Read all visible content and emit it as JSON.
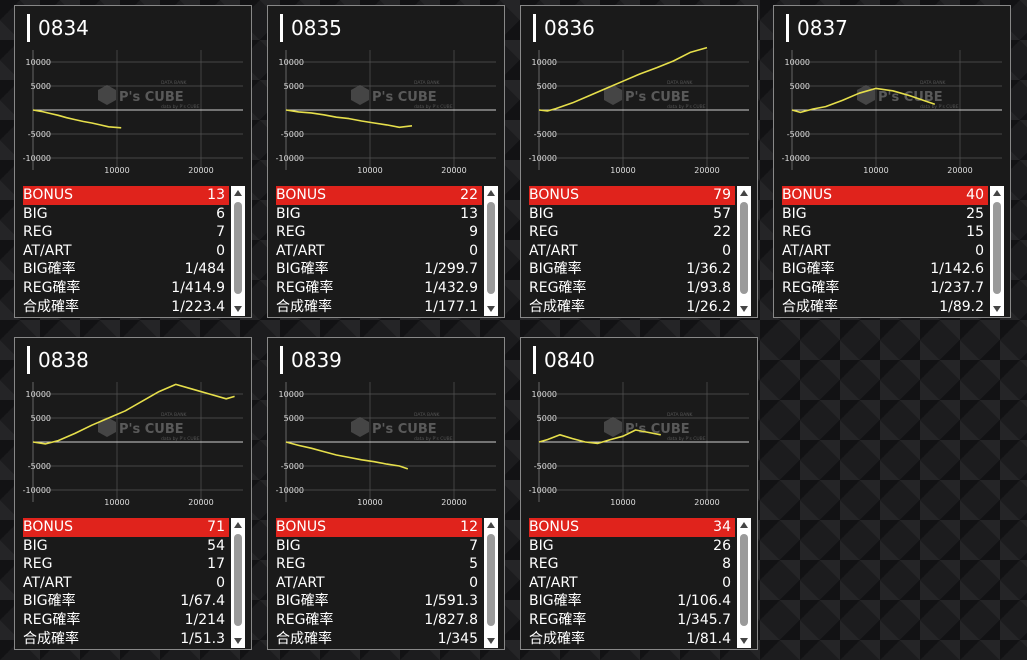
{
  "colors": {
    "highlight": "#e0231c",
    "line": "#e6df4b",
    "panel": "#1a1a1a"
  },
  "watermark": {
    "brand": "P's CUBE",
    "sub": "data by P's CUBE",
    "tag": "DATA BANK"
  },
  "machines": [
    {
      "id": "0834",
      "chart_data": {
        "type": "line",
        "xlim": [
          0,
          25000
        ],
        "ylim": [
          -12500,
          12500
        ],
        "yticks": [
          10000,
          5000,
          0,
          -5000,
          -10000
        ],
        "ytick_labels": [
          "10000",
          "5000",
          "",
          "-5000",
          "-10000"
        ],
        "xticks": [
          10000,
          20000
        ],
        "xtick_labels": [
          "10000",
          "20000"
        ],
        "series": [
          {
            "x": [
              0,
              1000,
              2000,
              3000,
              4000,
              5000,
              6000,
              7000,
              8000,
              9000,
              10500
            ],
            "y": [
              0,
              -300,
              -700,
              -1100,
              -1600,
              -2000,
              -2400,
              -2700,
              -3100,
              -3500,
              -3700
            ]
          }
        ]
      },
      "stats": [
        {
          "label": "BONUS",
          "value": "13",
          "hl": true
        },
        {
          "label": "BIG",
          "value": "6"
        },
        {
          "label": "REG",
          "value": "7"
        },
        {
          "label": "AT/ART",
          "value": "0"
        },
        {
          "label": "BIG確率",
          "value": "1/484"
        },
        {
          "label": "REG確率",
          "value": "1/414.9"
        },
        {
          "label": "合成確率",
          "value": "1/223.4"
        }
      ]
    },
    {
      "id": "0835",
      "chart_data": {
        "type": "line",
        "xlim": [
          0,
          25000
        ],
        "ylim": [
          -12500,
          12500
        ],
        "yticks": [
          10000,
          5000,
          0,
          -5000,
          -10000
        ],
        "ytick_labels": [
          "10000",
          "5000",
          "",
          "-5000",
          "-10000"
        ],
        "xticks": [
          10000,
          20000
        ],
        "xtick_labels": [
          "10000",
          "20000"
        ],
        "series": [
          {
            "x": [
              0,
              1500,
              3000,
              4500,
              6000,
              7500,
              9000,
              10500,
              12000,
              13500,
              15000
            ],
            "y": [
              0,
              -400,
              -600,
              -1000,
              -1500,
              -1800,
              -2300,
              -2700,
              -3100,
              -3600,
              -3300
            ]
          }
        ]
      },
      "stats": [
        {
          "label": "BONUS",
          "value": "22",
          "hl": true
        },
        {
          "label": "BIG",
          "value": "13"
        },
        {
          "label": "REG",
          "value": "9"
        },
        {
          "label": "AT/ART",
          "value": "0"
        },
        {
          "label": "BIG確率",
          "value": "1/299.7"
        },
        {
          "label": "REG確率",
          "value": "1/432.9"
        },
        {
          "label": "合成確率",
          "value": "1/177.1"
        }
      ]
    },
    {
      "id": "0836",
      "chart_data": {
        "type": "line",
        "xlim": [
          0,
          25000
        ],
        "ylim": [
          -12500,
          12500
        ],
        "yticks": [
          10000,
          5000,
          0,
          -5000,
          -10000
        ],
        "ytick_labels": [
          "10000",
          "5000",
          "",
          "-5000",
          "-10000"
        ],
        "xticks": [
          10000,
          20000
        ],
        "xtick_labels": [
          "10000",
          "20000"
        ],
        "series": [
          {
            "x": [
              0,
              1000,
              2000,
              4000,
              6000,
              8000,
              10000,
              12000,
              14000,
              16000,
              18000,
              20000
            ],
            "y": [
              0,
              -200,
              300,
              1500,
              3000,
              4500,
              6000,
              7500,
              8800,
              10200,
              12000,
              13000
            ]
          }
        ]
      },
      "stats": [
        {
          "label": "BONUS",
          "value": "79",
          "hl": true
        },
        {
          "label": "BIG",
          "value": "57"
        },
        {
          "label": "REG",
          "value": "22"
        },
        {
          "label": "AT/ART",
          "value": "0"
        },
        {
          "label": "BIG確率",
          "value": "1/36.2"
        },
        {
          "label": "REG確率",
          "value": "1/93.8"
        },
        {
          "label": "合成確率",
          "value": "1/26.2"
        }
      ]
    },
    {
      "id": "0837",
      "chart_data": {
        "type": "line",
        "xlim": [
          0,
          25000
        ],
        "ylim": [
          -12500,
          12500
        ],
        "yticks": [
          10000,
          5000,
          0,
          -5000,
          -10000
        ],
        "ytick_labels": [
          "10000",
          "5000",
          "",
          "-5000",
          "-10000"
        ],
        "xticks": [
          10000,
          20000
        ],
        "xtick_labels": [
          "10000",
          "20000"
        ],
        "series": [
          {
            "x": [
              0,
              1000,
              2500,
              4000,
              6000,
              8000,
              10000,
              12000,
              14000,
              16000,
              17000
            ],
            "y": [
              0,
              -500,
              200,
              700,
              2000,
              3500,
              4500,
              4000,
              3000,
              1800,
              1200
            ]
          }
        ]
      },
      "stats": [
        {
          "label": "BONUS",
          "value": "40",
          "hl": true
        },
        {
          "label": "BIG",
          "value": "25"
        },
        {
          "label": "REG",
          "value": "15"
        },
        {
          "label": "AT/ART",
          "value": "0"
        },
        {
          "label": "BIG確率",
          "value": "1/142.6"
        },
        {
          "label": "REG確率",
          "value": "1/237.7"
        },
        {
          "label": "合成確率",
          "value": "1/89.2"
        }
      ]
    },
    {
      "id": "0838",
      "chart_data": {
        "type": "line",
        "xlim": [
          0,
          25000
        ],
        "ylim": [
          -12500,
          12500
        ],
        "yticks": [
          10000,
          5000,
          0,
          -5000,
          -10000
        ],
        "ytick_labels": [
          "10000",
          "5000",
          "",
          "-5000",
          "-10000"
        ],
        "xticks": [
          10000,
          20000
        ],
        "xtick_labels": [
          "10000",
          "20000"
        ],
        "series": [
          {
            "x": [
              0,
              1500,
              3000,
              5000,
              7000,
              9000,
              11000,
              13000,
              15000,
              17000,
              19000,
              21000,
              23000,
              24000
            ],
            "y": [
              0,
              -400,
              300,
              1800,
              3500,
              5000,
              6500,
              8500,
              10500,
              12000,
              11000,
              10000,
              9000,
              9500
            ]
          }
        ]
      },
      "stats": [
        {
          "label": "BONUS",
          "value": "71",
          "hl": true
        },
        {
          "label": "BIG",
          "value": "54"
        },
        {
          "label": "REG",
          "value": "17"
        },
        {
          "label": "AT/ART",
          "value": "0"
        },
        {
          "label": "BIG確率",
          "value": "1/67.4"
        },
        {
          "label": "REG確率",
          "value": "1/214"
        },
        {
          "label": "合成確率",
          "value": "1/51.3"
        }
      ]
    },
    {
      "id": "0839",
      "chart_data": {
        "type": "line",
        "xlim": [
          0,
          25000
        ],
        "ylim": [
          -12500,
          12500
        ],
        "yticks": [
          10000,
          5000,
          0,
          -5000,
          -10000
        ],
        "ytick_labels": [
          "10000",
          "5000",
          "",
          "-5000",
          "-10000"
        ],
        "xticks": [
          10000,
          20000
        ],
        "xtick_labels": [
          "10000",
          "20000"
        ],
        "series": [
          {
            "x": [
              0,
              1500,
              3000,
              4500,
              6000,
              7500,
              9000,
              10500,
              12000,
              13500,
              14500
            ],
            "y": [
              0,
              -700,
              -1300,
              -2000,
              -2700,
              -3200,
              -3700,
              -4100,
              -4600,
              -5000,
              -5600
            ]
          }
        ]
      },
      "stats": [
        {
          "label": "BONUS",
          "value": "12",
          "hl": true
        },
        {
          "label": "BIG",
          "value": "7"
        },
        {
          "label": "REG",
          "value": "5"
        },
        {
          "label": "AT/ART",
          "value": "0"
        },
        {
          "label": "BIG確率",
          "value": "1/591.3"
        },
        {
          "label": "REG確率",
          "value": "1/827.8"
        },
        {
          "label": "合成確率",
          "value": "1/345"
        }
      ]
    },
    {
      "id": "0840",
      "chart_data": {
        "type": "line",
        "xlim": [
          0,
          25000
        ],
        "ylim": [
          -12500,
          12500
        ],
        "yticks": [
          10000,
          5000,
          0,
          -5000,
          -10000
        ],
        "ytick_labels": [
          "10000",
          "5000",
          "",
          "-5000",
          "-10000"
        ],
        "xticks": [
          10000,
          20000
        ],
        "xtick_labels": [
          "10000",
          "20000"
        ],
        "series": [
          {
            "x": [
              0,
              1000,
              2500,
              4000,
              5500,
              7000,
              8500,
              10000,
              11500,
              13000,
              14500
            ],
            "y": [
              0,
              500,
              1500,
              700,
              0,
              -300,
              500,
              1200,
              2500,
              2000,
              1500
            ]
          }
        ]
      },
      "stats": [
        {
          "label": "BONUS",
          "value": "34",
          "hl": true
        },
        {
          "label": "BIG",
          "value": "26"
        },
        {
          "label": "REG",
          "value": "8"
        },
        {
          "label": "AT/ART",
          "value": "0"
        },
        {
          "label": "BIG確率",
          "value": "1/106.4"
        },
        {
          "label": "REG確率",
          "value": "1/345.7"
        },
        {
          "label": "合成確率",
          "value": "1/81.4"
        }
      ]
    }
  ]
}
